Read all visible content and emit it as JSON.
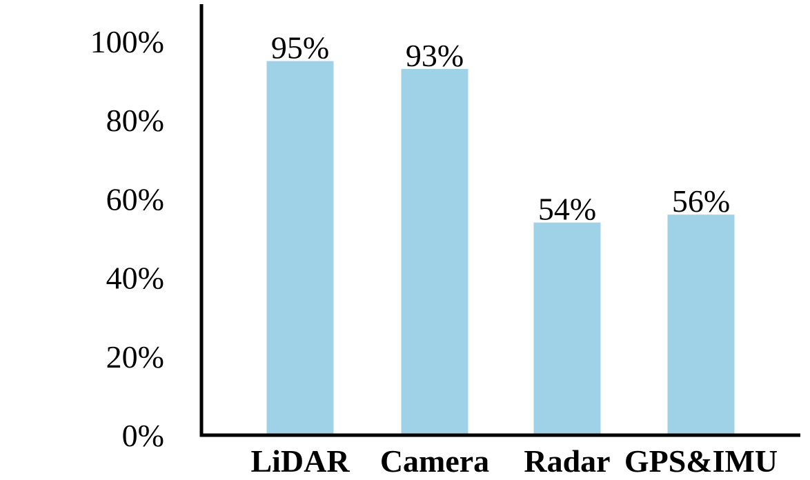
{
  "chart_data": {
    "type": "bar",
    "title": "",
    "xlabel": "",
    "ylabel": "",
    "categories": [
      "LiDAR",
      "Camera",
      "Radar",
      "GPS&IMU"
    ],
    "values": [
      95,
      93,
      54,
      56
    ],
    "data_labels": [
      "95%",
      "93%",
      "54%",
      "56%"
    ],
    "ylim": [
      0,
      100
    ],
    "yticks": [
      0,
      20,
      40,
      60,
      80,
      100
    ],
    "ytick_labels": [
      "0%",
      "20%",
      "40%",
      "60%",
      "80%",
      "100%"
    ],
    "grid": false,
    "legend": "none",
    "colors": {
      "bar": "#9fd2e6",
      "axis": "#000000",
      "text": "#000000"
    }
  }
}
